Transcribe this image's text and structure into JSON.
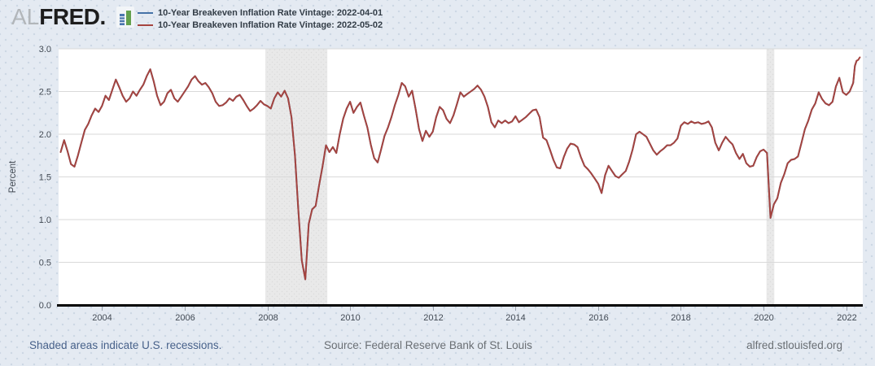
{
  "header": {
    "logo": {
      "prefix": "AL",
      "brand": "FRED",
      "suffix": "."
    },
    "legend": [
      {
        "label": "10-Year Breakeven Inflation Rate Vintage: 2022-04-01",
        "color": "#4572a7"
      },
      {
        "label": "10-Year Breakeven Inflation Rate Vintage: 2022-05-02",
        "color": "#a5443f"
      }
    ]
  },
  "footer": {
    "recession_note": "Shaded areas indicate U.S. recessions.",
    "source": "Source: Federal Reserve Bank of St. Louis",
    "site": "alfred.stlouisfed.org"
  },
  "colors": {
    "page_bg": "#e4eaf2",
    "plot_bg": "#ffffff",
    "grid": "#d9d9d9",
    "axis": "#000000",
    "tick_text": "#424a54",
    "recession_band": "#e9e9e9",
    "recession_band_dot": "#dbdbdb",
    "series_blue": "#4572a7",
    "series_red": "#a5443f"
  },
  "chart_data": {
    "type": "line",
    "title": "",
    "xlabel": "",
    "ylabel": "Percent",
    "grid": true,
    "legend_position": "top-left",
    "x_domain": [
      2002.95,
      2022.4
    ],
    "y_domain": [
      0,
      3
    ],
    "x_ticks": [
      {
        "v": 2004,
        "label": "2004"
      },
      {
        "v": 2006,
        "label": "2006"
      },
      {
        "v": 2008,
        "label": "2008"
      },
      {
        "v": 2010,
        "label": "2010"
      },
      {
        "v": 2012,
        "label": "2012"
      },
      {
        "v": 2014,
        "label": "2014"
      },
      {
        "v": 2016,
        "label": "2016"
      },
      {
        "v": 2018,
        "label": "2018"
      },
      {
        "v": 2020,
        "label": "2020"
      },
      {
        "v": 2022,
        "label": "2022"
      }
    ],
    "y_ticks": [
      {
        "v": 0.0,
        "label": "0.0"
      },
      {
        "v": 0.5,
        "label": "0.5"
      },
      {
        "v": 1.0,
        "label": "1.0"
      },
      {
        "v": 1.5,
        "label": "1.5"
      },
      {
        "v": 2.0,
        "label": "2.0"
      },
      {
        "v": 2.5,
        "label": "2.5"
      },
      {
        "v": 3.0,
        "label": "3.0"
      }
    ],
    "recession_bands": [
      {
        "start": 2007.95,
        "end": 2009.45
      },
      {
        "start": 2020.07,
        "end": 2020.26
      }
    ],
    "series": [
      {
        "name": "10-Year Breakeven Inflation Rate Vintage: 2022-04-01",
        "color": "#4572a7",
        "end_x": 2022.25,
        "points": "same-as-2022-05-02-vintage-through-end_x"
      },
      {
        "name": "10-Year Breakeven Inflation Rate Vintage: 2022-05-02",
        "color": "#a5443f",
        "points": [
          [
            2003.0,
            1.79
          ],
          [
            2003.083,
            1.93
          ],
          [
            2003.167,
            1.8
          ],
          [
            2003.25,
            1.65
          ],
          [
            2003.333,
            1.62
          ],
          [
            2003.417,
            1.75
          ],
          [
            2003.5,
            1.9
          ],
          [
            2003.583,
            2.05
          ],
          [
            2003.667,
            2.12
          ],
          [
            2003.75,
            2.22
          ],
          [
            2003.833,
            2.3
          ],
          [
            2003.917,
            2.26
          ],
          [
            2004.0,
            2.33
          ],
          [
            2004.083,
            2.45
          ],
          [
            2004.167,
            2.4
          ],
          [
            2004.25,
            2.52
          ],
          [
            2004.333,
            2.64
          ],
          [
            2004.417,
            2.55
          ],
          [
            2004.5,
            2.45
          ],
          [
            2004.583,
            2.38
          ],
          [
            2004.667,
            2.42
          ],
          [
            2004.75,
            2.5
          ],
          [
            2004.833,
            2.45
          ],
          [
            2004.917,
            2.52
          ],
          [
            2005.0,
            2.58
          ],
          [
            2005.083,
            2.68
          ],
          [
            2005.167,
            2.76
          ],
          [
            2005.25,
            2.62
          ],
          [
            2005.333,
            2.45
          ],
          [
            2005.417,
            2.34
          ],
          [
            2005.5,
            2.38
          ],
          [
            2005.583,
            2.48
          ],
          [
            2005.667,
            2.52
          ],
          [
            2005.75,
            2.42
          ],
          [
            2005.833,
            2.38
          ],
          [
            2005.917,
            2.44
          ],
          [
            2006.0,
            2.5
          ],
          [
            2006.083,
            2.56
          ],
          [
            2006.167,
            2.64
          ],
          [
            2006.25,
            2.68
          ],
          [
            2006.333,
            2.62
          ],
          [
            2006.417,
            2.58
          ],
          [
            2006.5,
            2.6
          ],
          [
            2006.583,
            2.55
          ],
          [
            2006.667,
            2.48
          ],
          [
            2006.75,
            2.38
          ],
          [
            2006.833,
            2.33
          ],
          [
            2006.917,
            2.34
          ],
          [
            2007.0,
            2.37
          ],
          [
            2007.083,
            2.42
          ],
          [
            2007.167,
            2.39
          ],
          [
            2007.25,
            2.44
          ],
          [
            2007.333,
            2.46
          ],
          [
            2007.417,
            2.4
          ],
          [
            2007.5,
            2.33
          ],
          [
            2007.583,
            2.27
          ],
          [
            2007.667,
            2.3
          ],
          [
            2007.75,
            2.34
          ],
          [
            2007.833,
            2.39
          ],
          [
            2007.917,
            2.35
          ],
          [
            2008.0,
            2.33
          ],
          [
            2008.083,
            2.3
          ],
          [
            2008.167,
            2.42
          ],
          [
            2008.25,
            2.49
          ],
          [
            2008.333,
            2.44
          ],
          [
            2008.417,
            2.51
          ],
          [
            2008.5,
            2.42
          ],
          [
            2008.583,
            2.2
          ],
          [
            2008.667,
            1.75
          ],
          [
            2008.75,
            1.1
          ],
          [
            2008.833,
            0.52
          ],
          [
            2008.917,
            0.3
          ],
          [
            2009.0,
            0.95
          ],
          [
            2009.083,
            1.12
          ],
          [
            2009.167,
            1.16
          ],
          [
            2009.25,
            1.4
          ],
          [
            2009.333,
            1.62
          ],
          [
            2009.417,
            1.87
          ],
          [
            2009.5,
            1.79
          ],
          [
            2009.583,
            1.85
          ],
          [
            2009.667,
            1.78
          ],
          [
            2009.75,
            2.0
          ],
          [
            2009.833,
            2.18
          ],
          [
            2009.917,
            2.3
          ],
          [
            2010.0,
            2.38
          ],
          [
            2010.083,
            2.25
          ],
          [
            2010.167,
            2.32
          ],
          [
            2010.25,
            2.37
          ],
          [
            2010.333,
            2.22
          ],
          [
            2010.417,
            2.08
          ],
          [
            2010.5,
            1.88
          ],
          [
            2010.583,
            1.72
          ],
          [
            2010.667,
            1.67
          ],
          [
            2010.75,
            1.82
          ],
          [
            2010.833,
            1.98
          ],
          [
            2010.917,
            2.08
          ],
          [
            2011.0,
            2.2
          ],
          [
            2011.083,
            2.34
          ],
          [
            2011.167,
            2.46
          ],
          [
            2011.25,
            2.6
          ],
          [
            2011.333,
            2.56
          ],
          [
            2011.417,
            2.44
          ],
          [
            2011.5,
            2.51
          ],
          [
            2011.583,
            2.3
          ],
          [
            2011.667,
            2.06
          ],
          [
            2011.75,
            1.92
          ],
          [
            2011.833,
            2.04
          ],
          [
            2011.917,
            1.97
          ],
          [
            2012.0,
            2.03
          ],
          [
            2012.083,
            2.2
          ],
          [
            2012.167,
            2.32
          ],
          [
            2012.25,
            2.28
          ],
          [
            2012.333,
            2.18
          ],
          [
            2012.417,
            2.13
          ],
          [
            2012.5,
            2.22
          ],
          [
            2012.583,
            2.35
          ],
          [
            2012.667,
            2.49
          ],
          [
            2012.75,
            2.44
          ],
          [
            2012.833,
            2.47
          ],
          [
            2012.917,
            2.5
          ],
          [
            2013.0,
            2.53
          ],
          [
            2013.083,
            2.57
          ],
          [
            2013.167,
            2.52
          ],
          [
            2013.25,
            2.44
          ],
          [
            2013.333,
            2.32
          ],
          [
            2013.417,
            2.14
          ],
          [
            2013.5,
            2.08
          ],
          [
            2013.583,
            2.16
          ],
          [
            2013.667,
            2.13
          ],
          [
            2013.75,
            2.16
          ],
          [
            2013.833,
            2.13
          ],
          [
            2013.917,
            2.15
          ],
          [
            2014.0,
            2.21
          ],
          [
            2014.083,
            2.14
          ],
          [
            2014.167,
            2.17
          ],
          [
            2014.25,
            2.2
          ],
          [
            2014.333,
            2.24
          ],
          [
            2014.417,
            2.28
          ],
          [
            2014.5,
            2.29
          ],
          [
            2014.583,
            2.2
          ],
          [
            2014.667,
            1.96
          ],
          [
            2014.75,
            1.93
          ],
          [
            2014.833,
            1.82
          ],
          [
            2014.917,
            1.7
          ],
          [
            2015.0,
            1.61
          ],
          [
            2015.083,
            1.6
          ],
          [
            2015.167,
            1.73
          ],
          [
            2015.25,
            1.83
          ],
          [
            2015.333,
            1.89
          ],
          [
            2015.417,
            1.88
          ],
          [
            2015.5,
            1.85
          ],
          [
            2015.583,
            1.73
          ],
          [
            2015.667,
            1.63
          ],
          [
            2015.75,
            1.59
          ],
          [
            2015.833,
            1.54
          ],
          [
            2015.917,
            1.48
          ],
          [
            2016.0,
            1.42
          ],
          [
            2016.083,
            1.31
          ],
          [
            2016.167,
            1.52
          ],
          [
            2016.25,
            1.63
          ],
          [
            2016.333,
            1.57
          ],
          [
            2016.417,
            1.51
          ],
          [
            2016.5,
            1.49
          ],
          [
            2016.583,
            1.53
          ],
          [
            2016.667,
            1.57
          ],
          [
            2016.75,
            1.68
          ],
          [
            2016.833,
            1.82
          ],
          [
            2016.917,
            2.0
          ],
          [
            2017.0,
            2.03
          ],
          [
            2017.083,
            2.0
          ],
          [
            2017.167,
            1.97
          ],
          [
            2017.25,
            1.89
          ],
          [
            2017.333,
            1.81
          ],
          [
            2017.417,
            1.76
          ],
          [
            2017.5,
            1.8
          ],
          [
            2017.583,
            1.83
          ],
          [
            2017.667,
            1.87
          ],
          [
            2017.75,
            1.87
          ],
          [
            2017.833,
            1.9
          ],
          [
            2017.917,
            1.95
          ],
          [
            2018.0,
            2.1
          ],
          [
            2018.083,
            2.14
          ],
          [
            2018.167,
            2.12
          ],
          [
            2018.25,
            2.15
          ],
          [
            2018.333,
            2.13
          ],
          [
            2018.417,
            2.14
          ],
          [
            2018.5,
            2.12
          ],
          [
            2018.583,
            2.13
          ],
          [
            2018.667,
            2.15
          ],
          [
            2018.75,
            2.08
          ],
          [
            2018.833,
            1.9
          ],
          [
            2018.917,
            1.81
          ],
          [
            2019.0,
            1.9
          ],
          [
            2019.083,
            1.97
          ],
          [
            2019.167,
            1.92
          ],
          [
            2019.25,
            1.88
          ],
          [
            2019.333,
            1.78
          ],
          [
            2019.417,
            1.71
          ],
          [
            2019.5,
            1.77
          ],
          [
            2019.583,
            1.66
          ],
          [
            2019.667,
            1.62
          ],
          [
            2019.75,
            1.63
          ],
          [
            2019.833,
            1.73
          ],
          [
            2019.917,
            1.8
          ],
          [
            2020.0,
            1.82
          ],
          [
            2020.083,
            1.78
          ],
          [
            2020.167,
            1.02
          ],
          [
            2020.25,
            1.18
          ],
          [
            2020.333,
            1.25
          ],
          [
            2020.417,
            1.43
          ],
          [
            2020.5,
            1.53
          ],
          [
            2020.583,
            1.66
          ],
          [
            2020.667,
            1.7
          ],
          [
            2020.75,
            1.71
          ],
          [
            2020.833,
            1.74
          ],
          [
            2020.917,
            1.9
          ],
          [
            2021.0,
            2.06
          ],
          [
            2021.083,
            2.16
          ],
          [
            2021.167,
            2.29
          ],
          [
            2021.25,
            2.36
          ],
          [
            2021.333,
            2.49
          ],
          [
            2021.417,
            2.41
          ],
          [
            2021.5,
            2.36
          ],
          [
            2021.583,
            2.34
          ],
          [
            2021.667,
            2.38
          ],
          [
            2021.75,
            2.56
          ],
          [
            2021.833,
            2.66
          ],
          [
            2021.917,
            2.49
          ],
          [
            2022.0,
            2.46
          ],
          [
            2022.083,
            2.5
          ],
          [
            2022.167,
            2.6
          ],
          [
            2022.21,
            2.8
          ],
          [
            2022.25,
            2.86
          ],
          [
            2022.29,
            2.87
          ],
          [
            2022.33,
            2.9
          ]
        ]
      }
    ]
  }
}
